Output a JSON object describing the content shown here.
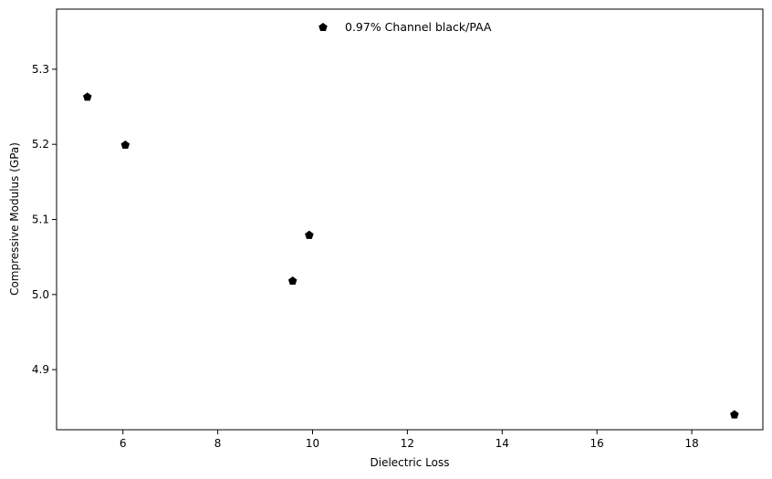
{
  "chart_data": {
    "type": "scatter",
    "xlabel": "Dielectric Loss",
    "ylabel": "Compressive Modulus (GPa)",
    "xlim": [
      4.6,
      19.5
    ],
    "ylim": [
      4.82,
      5.38
    ],
    "xticks": [
      6,
      8,
      10,
      12,
      14,
      16,
      18
    ],
    "yticks": [
      4.9,
      5.0,
      5.1,
      5.2,
      5.3
    ],
    "xtick_labels": [
      "6",
      "8",
      "10",
      "12",
      "14",
      "16",
      "18"
    ],
    "ytick_labels": [
      "4.9",
      "5.0",
      "5.1",
      "5.2",
      "5.3"
    ],
    "grid": false,
    "legend_position": "top-center",
    "series": [
      {
        "name": "0.97% Channel black/PAA",
        "color": "#000000",
        "marker": "pentagon",
        "points": [
          {
            "x": 5.25,
            "y": 5.263
          },
          {
            "x": 6.05,
            "y": 5.199
          },
          {
            "x": 9.58,
            "y": 5.018
          },
          {
            "x": 9.93,
            "y": 5.079
          },
          {
            "x": 18.9,
            "y": 4.84
          }
        ]
      }
    ]
  }
}
